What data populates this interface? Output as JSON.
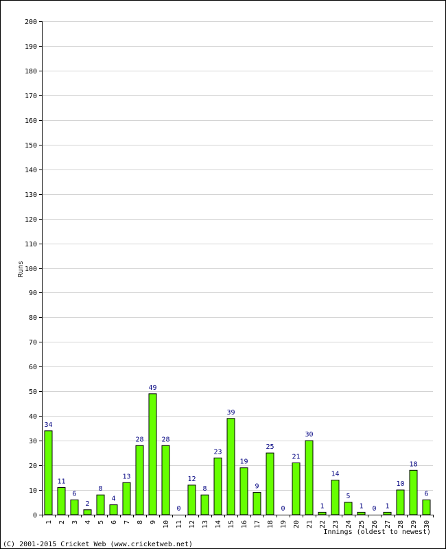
{
  "chart_data": {
    "type": "bar",
    "title": "",
    "ylabel": "Runs",
    "xlabel": "Innings (oldest to newest)",
    "ylim": [
      0,
      200
    ],
    "ytick_step": 10,
    "grid": true,
    "categories": [
      "1",
      "2",
      "3",
      "4",
      "5",
      "6",
      "7",
      "8",
      "9",
      "10",
      "11",
      "12",
      "13",
      "14",
      "15",
      "16",
      "17",
      "18",
      "19",
      "20",
      "21",
      "22",
      "23",
      "24",
      "25",
      "26",
      "27",
      "28",
      "29",
      "30"
    ],
    "values": [
      34,
      11,
      6,
      2,
      8,
      4,
      13,
      28,
      49,
      28,
      0,
      12,
      8,
      23,
      39,
      19,
      9,
      25,
      0,
      21,
      30,
      1,
      14,
      5,
      1,
      0,
      1,
      10,
      18,
      6
    ],
    "colors": {
      "bar_fill": "#66ff00",
      "bar_stroke": "#000000",
      "data_label": "#000080",
      "grid": "#d3d3d3"
    }
  },
  "footer": {
    "copyright": "(C) 2001-2015 Cricket Web (www.cricketweb.net)"
  }
}
